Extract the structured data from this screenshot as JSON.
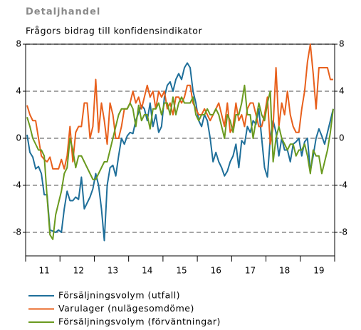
{
  "chart_data": {
    "type": "line",
    "title": "Detaljhandel",
    "subtitle": "Frågors bidrag till konfidensindikator",
    "categories": [
      null,
      null,
      null,
      null,
      null,
      null,
      "11",
      null,
      null,
      null,
      null,
      null,
      null,
      null,
      null,
      null,
      null,
      null,
      "12",
      null,
      null,
      null,
      null,
      null,
      null,
      null,
      null,
      null,
      null,
      null,
      "13",
      null,
      null,
      null,
      null,
      null,
      null,
      null,
      null,
      null,
      null,
      null,
      "14",
      null,
      null,
      null,
      null,
      null,
      null,
      null,
      null,
      null,
      null,
      null,
      "15",
      null,
      null,
      null,
      null,
      null,
      null,
      null,
      null,
      null,
      null,
      null,
      "16",
      null,
      null,
      null,
      null,
      null,
      null,
      null,
      null,
      null,
      null,
      null,
      "17",
      null,
      null,
      null,
      null,
      null,
      null,
      null,
      null,
      null,
      null,
      null,
      "18",
      null,
      null,
      null,
      null,
      null,
      null,
      null,
      null,
      null,
      null,
      null,
      "19",
      null,
      null,
      null,
      null,
      null
    ],
    "series": [
      {
        "name": "Försäljningsvolym (utfall)",
        "color": "#1f6f9a",
        "values": [
          0.3,
          -1.2,
          -1.6,
          -2.6,
          -2.4,
          -3,
          -4.8,
          -4.8,
          -7.8,
          -7.9,
          -8,
          -7.8,
          -8,
          -6,
          -4.5,
          -5.3,
          -5.3,
          -5,
          -5.2,
          -3.3,
          -6,
          -5.5,
          -5,
          -4.3,
          -3,
          -4,
          -6,
          -8.7,
          -4,
          -2.5,
          -2.3,
          -3.2,
          -1.5,
          0,
          -0.5,
          0.2,
          0.5,
          0.4,
          1.5,
          2.2,
          2.8,
          2.5,
          1.5,
          3,
          1,
          2,
          0.5,
          1,
          3.5,
          4.5,
          4.8,
          4,
          5,
          5.5,
          5,
          6,
          6.4,
          6,
          4,
          3,
          1.5,
          1,
          2,
          1.5,
          0,
          -2,
          -1.2,
          -2,
          -2.5,
          -3.2,
          -2.8,
          -2,
          -1.5,
          -0.5,
          -2.5,
          -0.2,
          -0.5,
          1,
          0.5,
          1.5,
          1.2,
          2.5,
          0,
          -2.5,
          -3.3,
          0,
          1.5,
          0.5,
          -1.5,
          0,
          -1,
          -1,
          -2,
          -0.5,
          -0.3,
          0,
          -1.5,
          -0.3,
          0,
          -2.8,
          -1.5,
          0,
          0.8,
          0.2,
          -0.5,
          0.5,
          1.5,
          2.5
        ]
      },
      {
        "name": "Varulager (nulägesomdöme)",
        "color": "#e8601c",
        "values": [
          2.8,
          2,
          1.5,
          1.5,
          0,
          -1.5,
          -1.8,
          -2,
          -1.6,
          -2.6,
          -2.6,
          -2.6,
          -1.8,
          -2.6,
          -1.5,
          1,
          -2,
          0.5,
          1,
          1,
          3,
          3,
          0,
          1,
          5,
          0.5,
          3,
          1.5,
          -0.5,
          3,
          2,
          0,
          0,
          1,
          2.5,
          2.5,
          3,
          4,
          3,
          3.5,
          2.5,
          3.5,
          4.5,
          3.5,
          4,
          2.5,
          4,
          3.5,
          4,
          2.5,
          3,
          2,
          3.5,
          3.5,
          3,
          3.5,
          4.5,
          4.5,
          3,
          2.5,
          2,
          2,
          2.5,
          2,
          1.5,
          2,
          2.5,
          3,
          2,
          1,
          3,
          0.5,
          1,
          3,
          1.5,
          2,
          1,
          2.5,
          3,
          3,
          2,
          1,
          1,
          2,
          3.5,
          -0.5,
          1,
          6,
          1,
          3,
          2,
          4,
          2,
          1,
          0.5,
          0.5,
          2.5,
          4,
          6.5,
          8,
          5.5,
          2.5,
          6,
          6,
          6,
          6,
          5,
          5
        ]
      },
      {
        "name": "Försäljningsvolym (förväntningar)",
        "color": "#6a9a1f",
        "values": [
          1.8,
          1,
          0,
          -0.5,
          -1,
          -1,
          -1.5,
          -5,
          -8.2,
          -8.6,
          -6.5,
          -5.5,
          -4.5,
          -3,
          -2.5,
          0,
          -1,
          -2.5,
          -1.5,
          -1.5,
          -2,
          -2.5,
          -3,
          -3.5,
          -3.5,
          -3,
          -2.5,
          -2,
          -2,
          -1,
          0,
          1,
          2,
          2.5,
          2.5,
          2.5,
          3,
          2.5,
          1,
          2.8,
          1.5,
          2,
          2,
          0.8,
          2.5,
          2.5,
          3,
          2,
          3,
          3,
          2,
          3.5,
          2,
          3,
          3.5,
          3,
          3,
          3,
          3.5,
          2,
          1.5,
          2,
          2,
          2.5,
          2,
          2,
          2.5,
          2,
          1,
          0,
          2,
          1.5,
          0.5,
          2,
          2,
          3,
          4.5,
          2,
          2,
          0,
          1.5,
          3,
          2,
          1.5,
          3,
          4,
          -2,
          0,
          1,
          0,
          -0.5,
          -1,
          -0.5,
          -0.5,
          -1.5,
          -1,
          -1,
          -0.5,
          -1.5,
          -3,
          -1,
          -1.5,
          -1.5,
          -3,
          -2,
          -1,
          0.5,
          2.5
        ]
      }
    ],
    "ylim": [
      -10,
      8
    ],
    "yticks": [
      -8,
      -4,
      0,
      4,
      8
    ],
    "grid": true
  }
}
